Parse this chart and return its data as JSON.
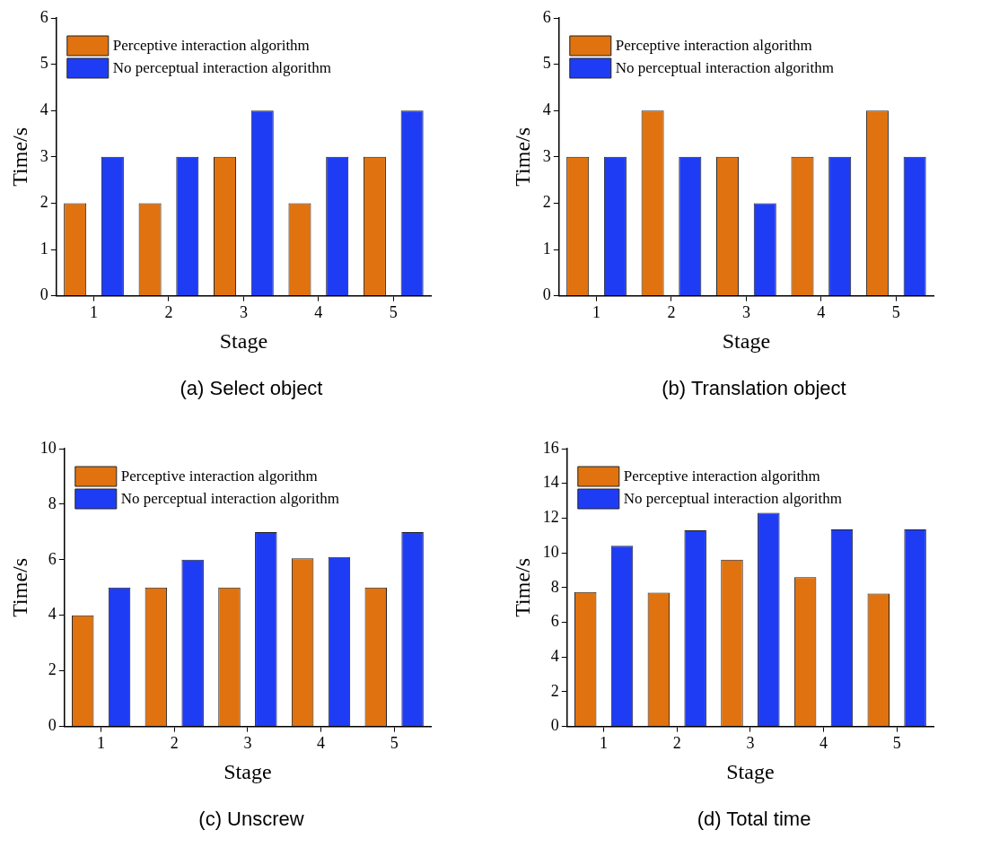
{
  "chart_data": [
    {
      "type": "bar",
      "title": "(a) Select object",
      "xlabel": "Stage",
      "ylabel": "Time/s",
      "categories": [
        "1",
        "2",
        "3",
        "4",
        "5"
      ],
      "series": [
        {
          "name": "Perceptive interaction algorithm",
          "color": "#e0720f",
          "values": [
            2,
            2,
            3,
            2,
            3
          ]
        },
        {
          "name": "No perceptual interaction algorithm",
          "color": "#1f3cf5",
          "values": [
            3,
            3,
            4,
            3,
            4
          ]
        }
      ],
      "ylim": [
        0,
        6
      ],
      "yticks": [
        0,
        1,
        2,
        3,
        4,
        5,
        6
      ],
      "grid": false,
      "legend": "top left"
    },
    {
      "type": "bar",
      "title": "(b) Translation object",
      "xlabel": "Stage",
      "ylabel": "Time/s",
      "categories": [
        "1",
        "2",
        "3",
        "4",
        "5"
      ],
      "series": [
        {
          "name": "Perceptive interaction algorithm",
          "color": "#e0720f",
          "values": [
            3,
            4,
            3,
            3,
            4
          ]
        },
        {
          "name": "No perceptual interaction algorithm",
          "color": "#1f3cf5",
          "values": [
            3,
            3,
            2,
            3,
            3
          ]
        }
      ],
      "ylim": [
        0,
        6
      ],
      "yticks": [
        0,
        1,
        2,
        3,
        4,
        5,
        6
      ],
      "grid": false,
      "legend": "top left"
    },
    {
      "type": "bar",
      "title": "(c) Unscrew",
      "xlabel": "Stage",
      "ylabel": "Time/s",
      "categories": [
        "1",
        "2",
        "3",
        "4",
        "5"
      ],
      "series": [
        {
          "name": "Perceptive interaction algorithm",
          "color": "#e0720f",
          "values": [
            4,
            5,
            5,
            6.05,
            5
          ]
        },
        {
          "name": "No perceptual interaction algorithm",
          "color": "#1f3cf5",
          "values": [
            5,
            6,
            7,
            6.1,
            7
          ]
        }
      ],
      "ylim": [
        0,
        10
      ],
      "yticks": [
        0,
        2,
        4,
        6,
        8,
        10
      ],
      "grid": false,
      "legend": "top left"
    },
    {
      "type": "bar",
      "title": "(d) Total time",
      "xlabel": "Stage",
      "ylabel": "Time/s",
      "categories": [
        "1",
        "2",
        "3",
        "4",
        "5"
      ],
      "series": [
        {
          "name": "Perceptive interaction algorithm",
          "color": "#e0720f",
          "values": [
            7.75,
            7.7,
            9.6,
            8.6,
            7.65
          ]
        },
        {
          "name": "No perceptual interaction algorithm",
          "color": "#1f3cf5",
          "values": [
            10.4,
            11.3,
            12.3,
            11.35,
            11.35
          ]
        }
      ],
      "ylim": [
        0,
        16
      ],
      "yticks": [
        0,
        2,
        4,
        6,
        8,
        10,
        12,
        14,
        16
      ],
      "grid": false,
      "legend": "top left"
    }
  ]
}
